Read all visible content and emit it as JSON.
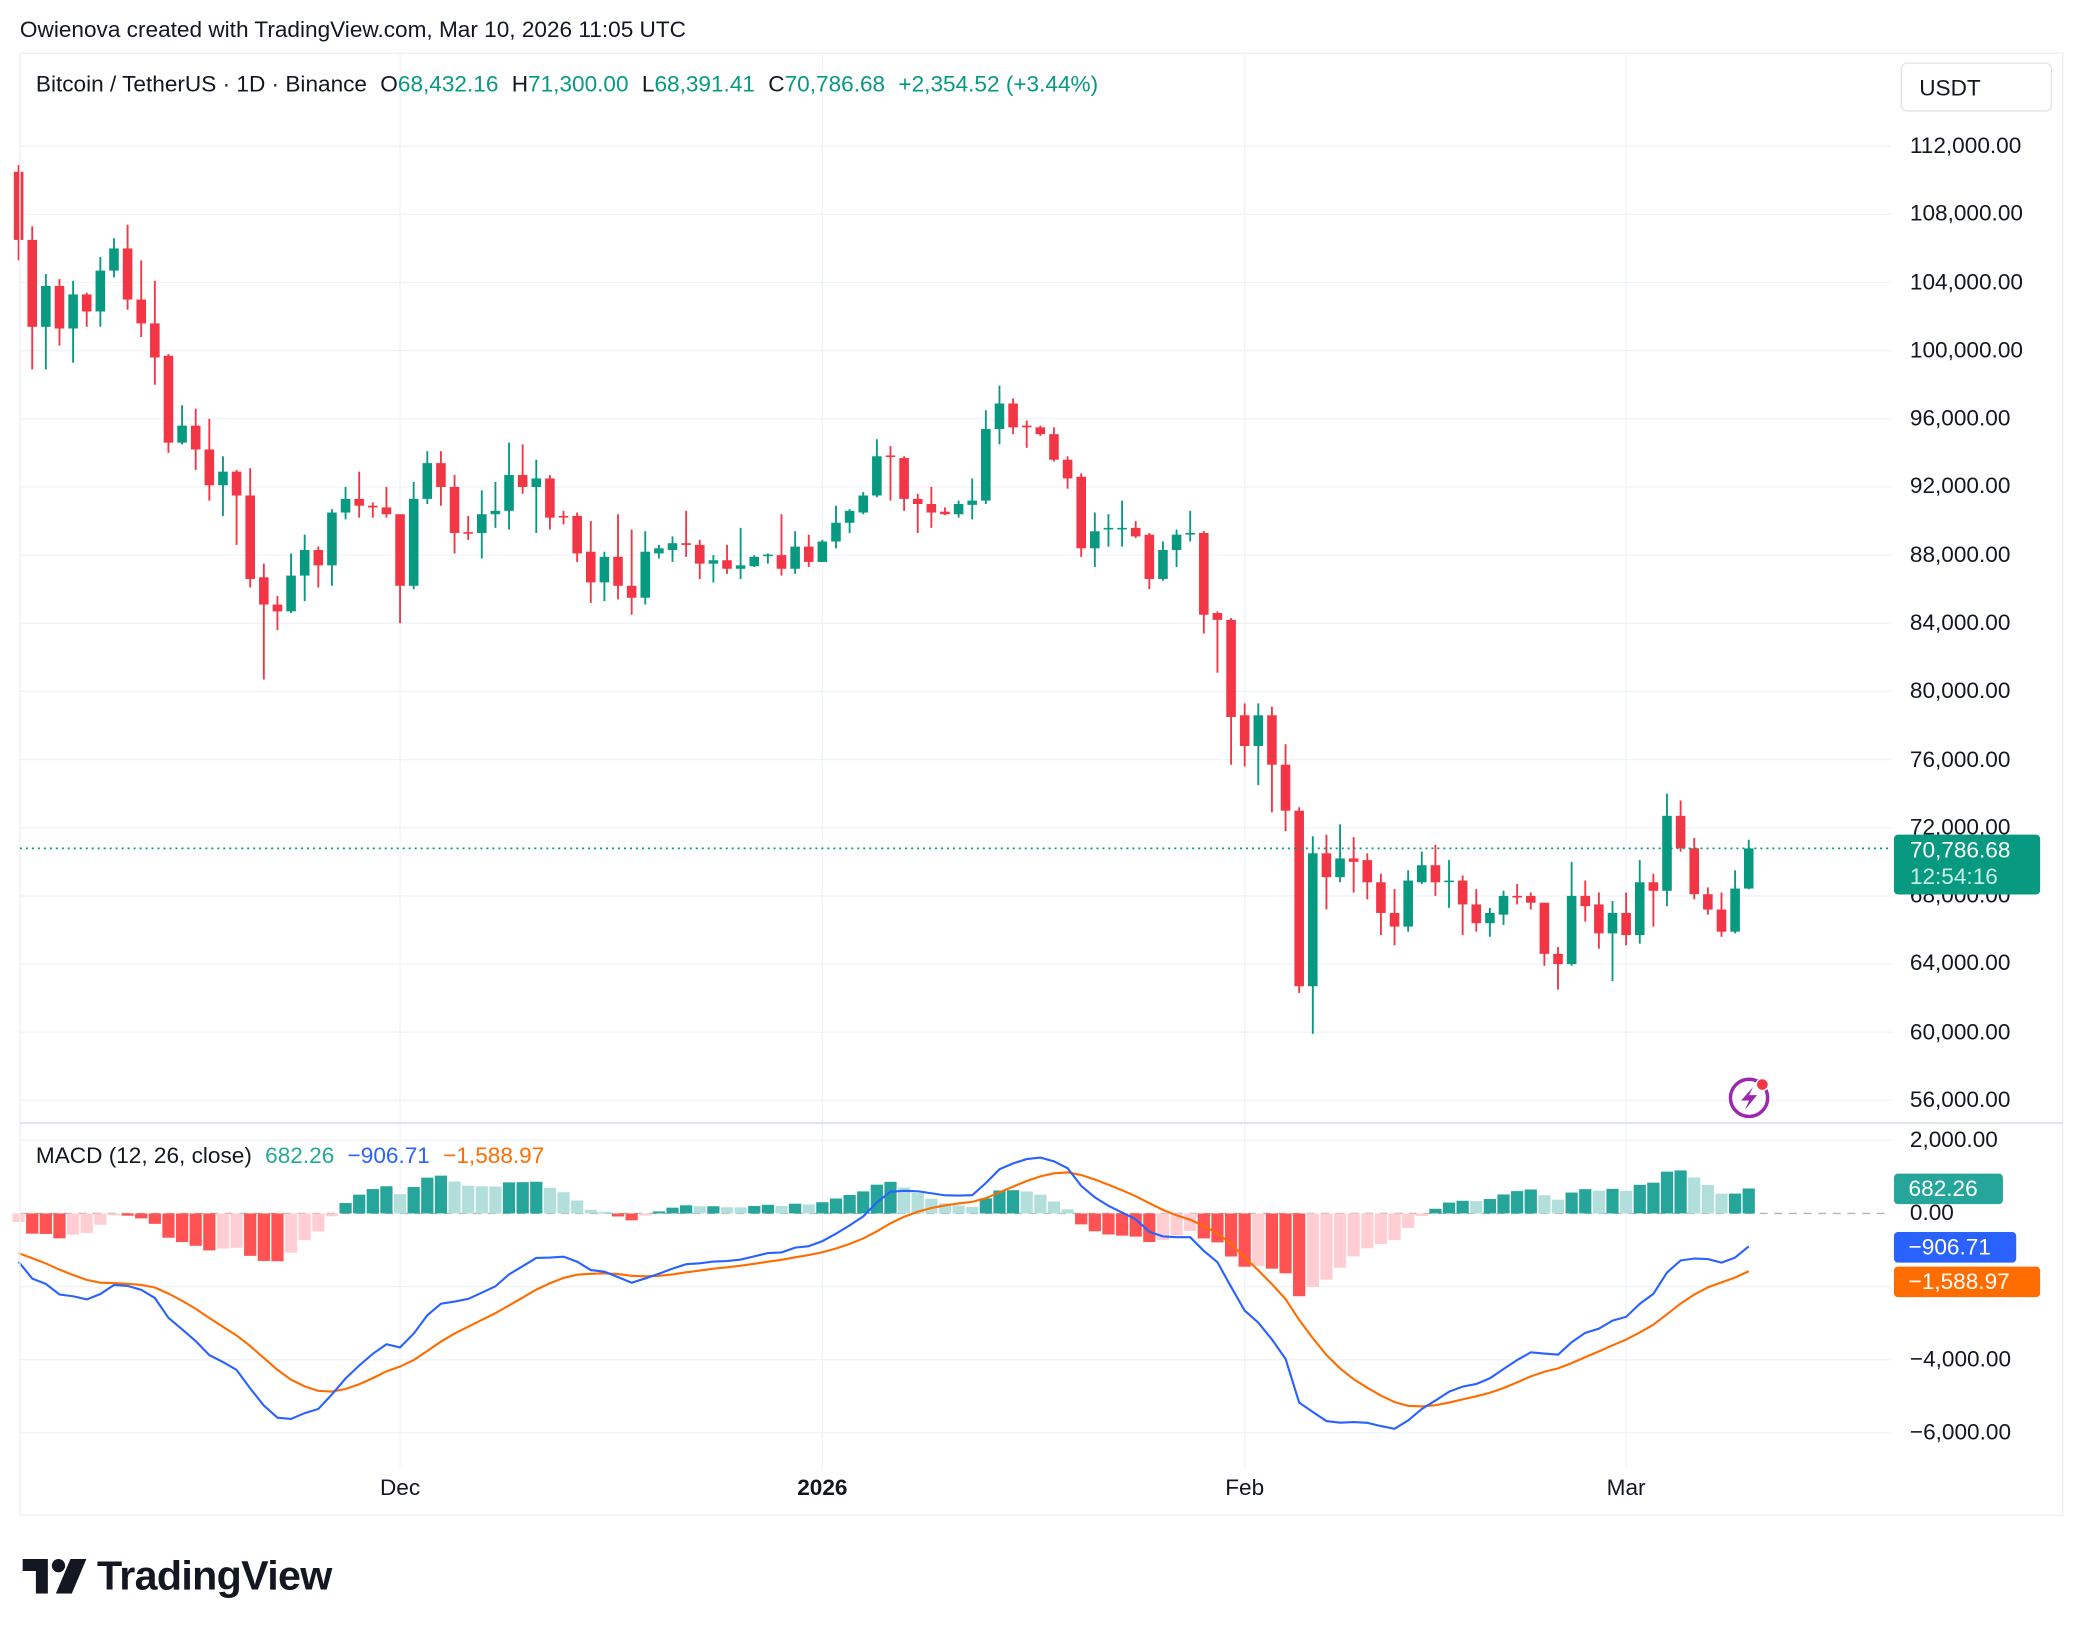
{
  "attribution": "Owienova created with TradingView.com, Mar 10, 2026 11:05 UTC",
  "legend": {
    "symbol": "Bitcoin / TetherUS · 1D · Binance",
    "open_key": "O",
    "open": "68,432.16",
    "high_key": "H",
    "high": "71,300.00",
    "low_key": "L",
    "low": "68,391.41",
    "close_key": "C",
    "close": "70,786.68",
    "change": "+2,354.52 (+3.44%)"
  },
  "currency_button": "USDT",
  "price_tag": {
    "price": "70,786.68",
    "countdown": "12:54:16"
  },
  "macd_legend": {
    "title": "MACD (12, 26, close)",
    "histogram": "682.26",
    "macd": "−906.71",
    "signal": "−1,588.97"
  },
  "macd_tags": {
    "histogram": "682.26",
    "macd": "−906.71",
    "signal": "−1,588.97"
  },
  "colors": {
    "up": "#089981",
    "down": "#f23645",
    "macd_line": "#2962ff",
    "signal_line": "#ff6d00",
    "hist_up_strong": "#26a69a",
    "hist_up_weak": "#b2dfdb",
    "hist_down_strong": "#ff5252",
    "hist_down_weak": "#ffcdd2",
    "alert_icon": "#9c27b0"
  },
  "icons": {
    "alert": "lightning-alert-icon",
    "logo": "tradingview-logo"
  },
  "logo_text": "TradingView",
  "chart_data": {
    "type": "candlestick",
    "title": "Bitcoin / TetherUS · 1D · Binance",
    "ylim": [
      54000,
      116000
    ],
    "y_ticks": [
      "112,000.00",
      "108,000.00",
      "104,000.00",
      "100,000.00",
      "96,000.00",
      "92,000.00",
      "88,000.00",
      "84,000.00",
      "80,000.00",
      "76,000.00",
      "72,000.00",
      "68,000.00",
      "64,000.00",
      "60,000.00",
      "56,000.00"
    ],
    "x_ticks": [
      {
        "label": "Dec",
        "date": "2025-12-01",
        "bold": false
      },
      {
        "label": "2026",
        "date": "2026-01-01",
        "bold": true
      },
      {
        "label": "Feb",
        "date": "2026-02-01",
        "bold": false
      },
      {
        "label": "Mar",
        "date": "2026-03-01",
        "bold": false
      }
    ],
    "last_price": 70786.68,
    "grid": true,
    "candles_columns": [
      "date",
      "open",
      "high",
      "low",
      "close"
    ],
    "candles": [
      [
        "2025-11-03",
        110500,
        110900,
        105300,
        106500
      ],
      [
        "2025-11-04",
        106500,
        107300,
        98900,
        101400
      ],
      [
        "2025-11-05",
        101400,
        104500,
        98900,
        103800
      ],
      [
        "2025-11-06",
        103800,
        104200,
        100300,
        101300
      ],
      [
        "2025-11-07",
        101300,
        104100,
        99300,
        103300
      ],
      [
        "2025-11-08",
        103300,
        103400,
        101400,
        102300
      ],
      [
        "2025-11-09",
        102300,
        105500,
        101400,
        104700
      ],
      [
        "2025-11-10",
        104700,
        106600,
        104300,
        106000
      ],
      [
        "2025-11-11",
        106000,
        107400,
        102400,
        103000
      ],
      [
        "2025-11-12",
        103000,
        105300,
        100800,
        101600
      ],
      [
        "2025-11-13",
        101600,
        104100,
        98000,
        99600
      ],
      [
        "2025-11-14",
        99700,
        99800,
        94000,
        94600
      ],
      [
        "2025-11-15",
        94600,
        96800,
        94500,
        95600
      ],
      [
        "2025-11-16",
        95600,
        96600,
        93000,
        94200
      ],
      [
        "2025-11-17",
        94200,
        96000,
        91200,
        92100
      ],
      [
        "2025-11-18",
        92100,
        93800,
        90300,
        92900
      ],
      [
        "2025-11-19",
        92900,
        93000,
        88600,
        91500
      ],
      [
        "2025-11-20",
        91500,
        93100,
        86100,
        86600
      ],
      [
        "2025-11-21",
        86700,
        87500,
        80700,
        85100
      ],
      [
        "2025-11-22",
        85100,
        85600,
        83600,
        84700
      ],
      [
        "2025-11-23",
        84700,
        88100,
        84600,
        86800
      ],
      [
        "2025-11-24",
        86800,
        89200,
        85300,
        88300
      ],
      [
        "2025-11-25",
        88300,
        88500,
        86100,
        87400
      ],
      [
        "2025-11-26",
        87400,
        90700,
        86200,
        90500
      ],
      [
        "2025-11-27",
        90500,
        92000,
        90100,
        91300
      ],
      [
        "2025-11-28",
        91300,
        92900,
        90200,
        90900
      ],
      [
        "2025-11-29",
        90900,
        91100,
        90200,
        90800
      ],
      [
        "2025-11-30",
        90800,
        92000,
        90200,
        90400
      ],
      [
        "2025-12-01",
        90400,
        90400,
        84000,
        86200
      ],
      [
        "2025-12-02",
        86200,
        92300,
        86000,
        91300
      ],
      [
        "2025-12-03",
        91300,
        94100,
        91000,
        93400
      ],
      [
        "2025-12-04",
        93400,
        94100,
        90900,
        92000
      ],
      [
        "2025-12-05",
        92000,
        92700,
        88100,
        89300
      ],
      [
        "2025-12-06",
        89350,
        90300,
        88900,
        89300
      ],
      [
        "2025-12-07",
        89300,
        91800,
        87800,
        90400
      ],
      [
        "2025-12-08",
        90400,
        92300,
        89600,
        90600
      ],
      [
        "2025-12-09",
        90600,
        94600,
        89500,
        92700
      ],
      [
        "2025-12-10",
        92700,
        94500,
        91600,
        92000
      ],
      [
        "2025-12-11",
        92000,
        93600,
        89300,
        92500
      ],
      [
        "2025-12-12",
        92500,
        92700,
        89500,
        90200
      ],
      [
        "2025-12-13",
        90300,
        90600,
        89800,
        90250
      ],
      [
        "2025-12-14",
        90300,
        90500,
        87600,
        88100
      ],
      [
        "2025-12-15",
        88200,
        90000,
        85200,
        86400
      ],
      [
        "2025-12-16",
        86400,
        88200,
        85300,
        87900
      ],
      [
        "2025-12-17",
        87900,
        90400,
        85400,
        86200
      ],
      [
        "2025-12-18",
        86200,
        89500,
        84500,
        85500
      ],
      [
        "2025-12-19",
        85500,
        89400,
        85100,
        88200
      ],
      [
        "2025-12-20",
        88100,
        88600,
        87800,
        88400
      ],
      [
        "2025-12-21",
        88300,
        89100,
        87600,
        88700
      ],
      [
        "2025-12-22",
        88700,
        90600,
        87900,
        88600
      ],
      [
        "2025-12-23",
        88600,
        88900,
        86600,
        87500
      ],
      [
        "2025-12-24",
        87500,
        88000,
        86400,
        87700
      ],
      [
        "2025-12-25",
        87700,
        88600,
        86900,
        87200
      ],
      [
        "2025-12-26",
        87200,
        89600,
        86600,
        87400
      ],
      [
        "2025-12-27",
        87350,
        88000,
        87300,
        87900
      ],
      [
        "2025-12-28",
        87980,
        88100,
        87500,
        88030
      ],
      [
        "2025-12-29",
        88000,
        90400,
        86800,
        87200
      ],
      [
        "2025-12-30",
        87200,
        89400,
        86900,
        88500
      ],
      [
        "2025-12-31",
        88500,
        89200,
        87300,
        87600
      ],
      [
        "2026-01-01",
        87600,
        88900,
        87600,
        88800
      ],
      [
        "2026-01-02",
        88800,
        90900,
        88400,
        89900
      ],
      [
        "2026-01-03",
        89900,
        90700,
        89300,
        90600
      ],
      [
        "2026-01-04",
        90500,
        91700,
        90400,
        91500
      ],
      [
        "2026-01-05",
        91500,
        94800,
        91400,
        93800
      ],
      [
        "2026-01-06",
        93850,
        94400,
        91200,
        93800
      ],
      [
        "2026-01-07",
        93700,
        93800,
        90600,
        91300
      ],
      [
        "2026-01-08",
        91300,
        91600,
        89300,
        91000
      ],
      [
        "2026-01-09",
        91000,
        92000,
        89600,
        90500
      ],
      [
        "2026-01-10",
        90550,
        90800,
        90350,
        90400
      ],
      [
        "2026-01-11",
        90400,
        91200,
        90200,
        91000
      ],
      [
        "2026-01-12",
        90950,
        92500,
        90100,
        91200
      ],
      [
        "2026-01-13",
        91200,
        96500,
        91000,
        95400
      ],
      [
        "2026-01-14",
        95400,
        97950,
        94500,
        96900
      ],
      [
        "2026-01-15",
        96900,
        97200,
        95100,
        95500
      ],
      [
        "2026-01-16",
        95600,
        95900,
        94300,
        95500
      ],
      [
        "2026-01-17",
        95500,
        95600,
        95000,
        95100
      ],
      [
        "2026-01-18",
        95100,
        95500,
        93500,
        93600
      ],
      [
        "2026-01-19",
        93600,
        93800,
        91900,
        92500
      ],
      [
        "2026-01-20",
        92600,
        92800,
        87900,
        88400
      ],
      [
        "2026-01-21",
        88400,
        90500,
        87300,
        89400
      ],
      [
        "2026-01-22",
        89550,
        90400,
        88500,
        89600
      ],
      [
        "2026-01-23",
        89550,
        91200,
        88500,
        89600
      ],
      [
        "2026-01-24",
        89600,
        90000,
        89000,
        89100
      ],
      [
        "2026-01-25",
        89200,
        89300,
        86000,
        86600
      ],
      [
        "2026-01-26",
        86600,
        88800,
        86500,
        88300
      ],
      [
        "2026-01-27",
        88300,
        89500,
        87300,
        89200
      ],
      [
        "2026-01-28",
        89250,
        90600,
        88800,
        89300
      ],
      [
        "2026-01-29",
        89300,
        89400,
        83400,
        84500
      ],
      [
        "2026-01-30",
        84600,
        84700,
        81100,
        84200
      ],
      [
        "2026-01-31",
        84200,
        84300,
        75700,
        78500
      ],
      [
        "2026-02-01",
        78600,
        79300,
        75600,
        76800
      ],
      [
        "2026-02-02",
        76800,
        79300,
        74500,
        78600
      ],
      [
        "2026-02-03",
        78600,
        79100,
        72900,
        75700
      ],
      [
        "2026-02-04",
        75700,
        76900,
        71800,
        73000
      ],
      [
        "2026-02-05",
        73000,
        73200,
        62300,
        62700
      ],
      [
        "2026-02-06",
        62700,
        71500,
        59900,
        70500
      ],
      [
        "2026-02-07",
        70500,
        71600,
        67200,
        69100
      ],
      [
        "2026-02-08",
        69100,
        72200,
        68800,
        70200
      ],
      [
        "2026-02-09",
        70200,
        71450,
        68200,
        70000
      ],
      [
        "2026-02-10",
        70100,
        70500,
        67800,
        68800
      ],
      [
        "2026-02-11",
        68800,
        69300,
        65700,
        67000
      ],
      [
        "2026-02-12",
        67000,
        68400,
        65100,
        66200
      ],
      [
        "2026-02-13",
        66200,
        69500,
        65900,
        68900
      ],
      [
        "2026-02-14",
        68800,
        70600,
        68700,
        69800
      ],
      [
        "2026-02-15",
        69800,
        71000,
        68000,
        68800
      ],
      [
        "2026-02-16",
        68850,
        70100,
        67300,
        68900
      ],
      [
        "2026-02-17",
        68900,
        69200,
        65700,
        67500
      ],
      [
        "2026-02-18",
        67500,
        68400,
        65900,
        66400
      ],
      [
        "2026-02-19",
        66400,
        67300,
        65600,
        67000
      ],
      [
        "2026-02-20",
        66900,
        68300,
        66300,
        68000
      ],
      [
        "2026-02-21",
        68000,
        68700,
        67500,
        67950
      ],
      [
        "2026-02-22",
        68000,
        68200,
        67200,
        67600
      ],
      [
        "2026-02-23",
        67600,
        67600,
        63900,
        64600
      ],
      [
        "2026-02-24",
        64600,
        65000,
        62500,
        64000
      ],
      [
        "2026-02-25",
        64000,
        70000,
        63900,
        68000
      ],
      [
        "2026-02-26",
        68000,
        68900,
        66500,
        67400
      ],
      [
        "2026-02-27",
        67500,
        68200,
        64900,
        65800
      ],
      [
        "2026-02-28",
        65800,
        67700,
        63000,
        67000
      ],
      [
        "2026-03-01",
        67000,
        68200,
        65100,
        65700
      ],
      [
        "2026-03-02",
        65700,
        70100,
        65200,
        68800
      ],
      [
        "2026-03-03",
        68800,
        69300,
        66200,
        68300
      ],
      [
        "2026-03-04",
        68300,
        74000,
        67400,
        72700
      ],
      [
        "2026-03-05",
        72700,
        73600,
        70600,
        70800
      ],
      [
        "2026-03-06",
        70800,
        71400,
        67800,
        68100
      ],
      [
        "2026-03-07",
        68100,
        68500,
        66900,
        67200
      ],
      [
        "2026-03-08",
        67200,
        68200,
        65600,
        65900
      ],
      [
        "2026-03-09",
        65900,
        69500,
        65800,
        68432.16
      ],
      [
        "2026-03-10",
        68432.16,
        71300,
        68391.41,
        70786.68
      ]
    ],
    "macd": {
      "title": "MACD (12, 26, close)",
      "fast": 12,
      "slow": 26,
      "signal": 9,
      "last": {
        "histogram": 682.26,
        "macd": -906.71,
        "signal": -1588.97
      },
      "y_ticks": [
        "2,000.00",
        "0.00",
        "−4,000.00",
        "−6,000.00"
      ]
    }
  }
}
